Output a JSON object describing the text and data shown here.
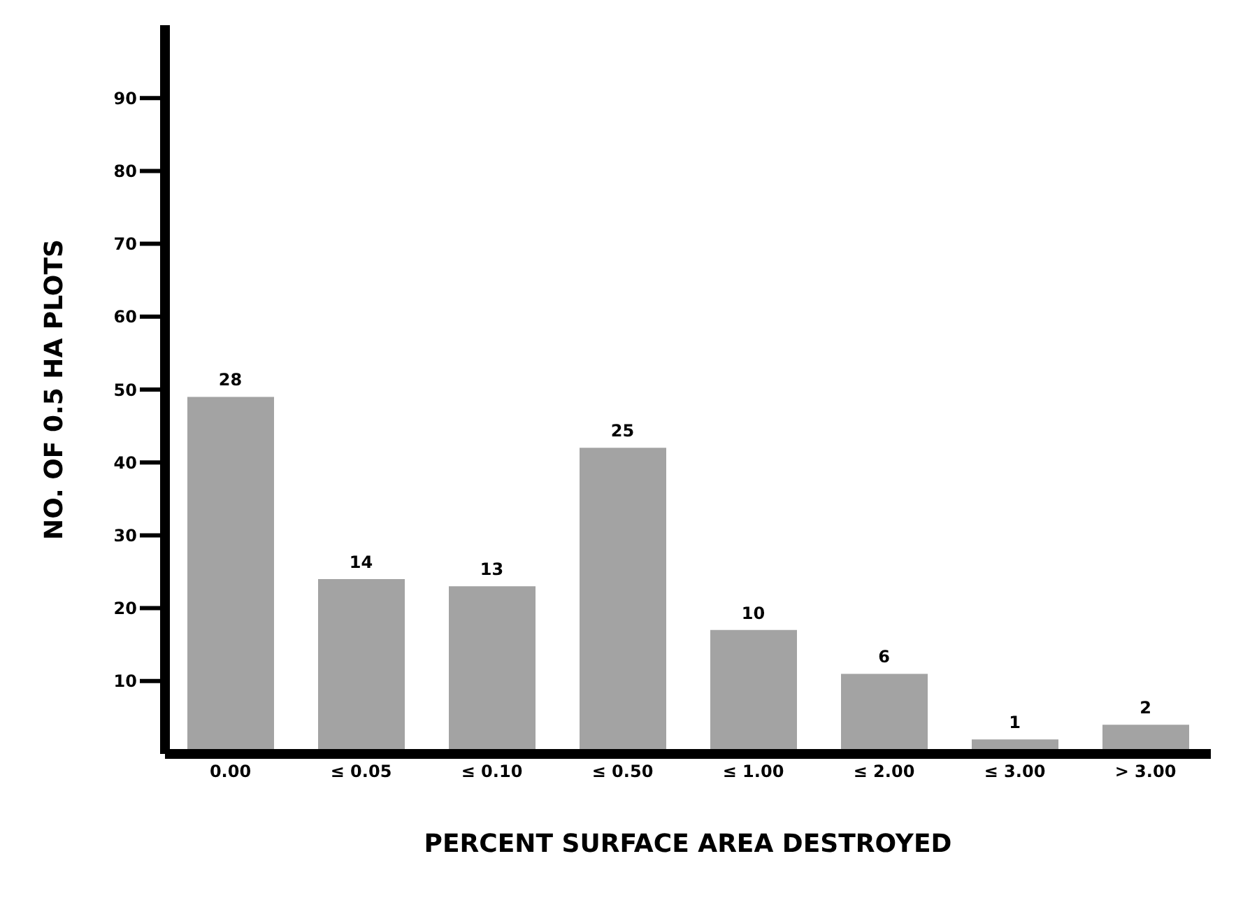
{
  "chart_data": {
    "type": "bar",
    "xlabel": "PERCENT SURFACE AREA DESTROYED",
    "ylabel": "NO. OF 0.5 HA PLOTS",
    "categories": [
      "0.00",
      "≤ 0.05",
      "≤ 0.10",
      "≤ 0.50",
      "≤ 1.00",
      "≤ 2.00",
      "≤ 3.00",
      "> 3.00"
    ],
    "values": [
      49,
      24,
      23,
      42,
      17,
      11,
      2,
      4
    ],
    "annotations": [
      {
        "text": "28",
        "x": "0.00",
        "y": 49
      },
      {
        "text": "14",
        "x": "≤ 0.05",
        "y": 24
      },
      {
        "text": "13",
        "x": "≤ 0.10",
        "y": 23
      },
      {
        "text": "25",
        "x": "≤ 0.50",
        "y": 42
      },
      {
        "text": "10",
        "x": "≤ 1.00",
        "y": 17
      },
      {
        "text": "6",
        "x": "≤ 2.00",
        "y": 11
      },
      {
        "text": "1",
        "x": "≤ 3.00",
        "y": 2
      },
      {
        "text": "2",
        "x": "> 3.00",
        "y": 4
      }
    ],
    "color": "#a3a3a3",
    "ylim": [
      0,
      100
    ],
    "yticks": [
      10,
      20,
      30,
      40,
      50,
      60,
      70,
      80,
      90
    ],
    "grid": false,
    "legend": false
  }
}
